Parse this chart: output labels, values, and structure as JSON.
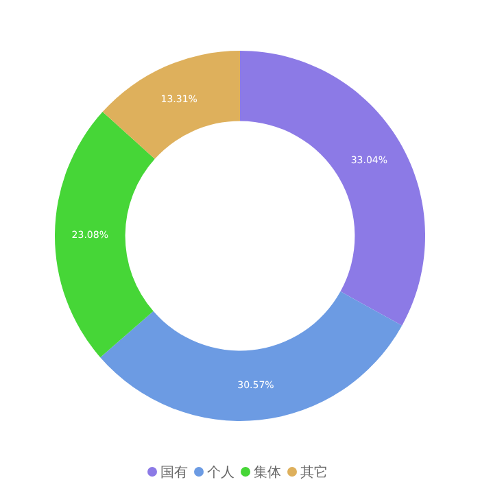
{
  "chart_data": {
    "type": "donut",
    "categories": [
      "国有",
      "个人",
      "集体",
      "其它"
    ],
    "values": [
      33.04,
      30.57,
      23.08,
      13.31
    ],
    "colors": [
      "#8c7ae6",
      "#6c9be3",
      "#46d637",
      "#deb05c"
    ],
    "value_labels": [
      "33.04%",
      "30.57%",
      "23.08%",
      "13.31%"
    ],
    "legend": "bottom"
  }
}
